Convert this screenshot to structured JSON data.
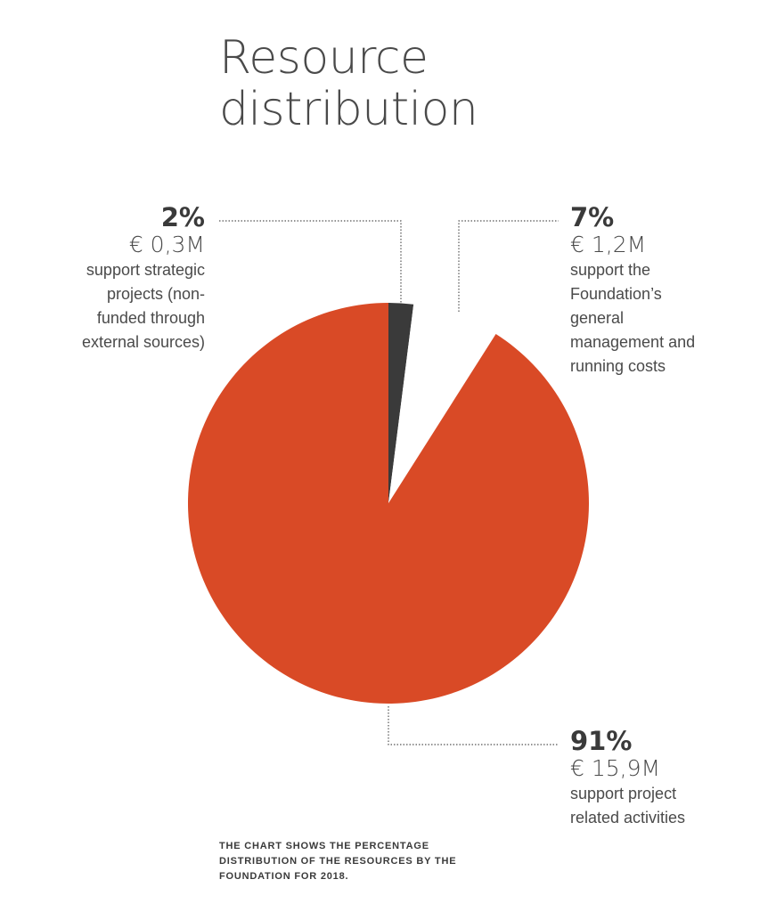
{
  "title": [
    "Resource",
    "distribution"
  ],
  "chart_data": {
    "type": "pie",
    "slices": [
      {
        "percent_label": "2%",
        "value": 2,
        "amount": "€ 0,3M",
        "description": [
          "support strategic",
          "projects (non-",
          "funded through",
          "external sources)"
        ],
        "color": "#3a3a3a"
      },
      {
        "percent_label": "7%",
        "value": 7,
        "amount": "€ 1,2M",
        "description": [
          "support the",
          "Foundation’s",
          "general",
          "management and",
          "running costs"
        ],
        "color": "#ffffff",
        "exploded": true
      },
      {
        "percent_label": "91%",
        "value": 91,
        "amount": "€ 15,9M",
        "description": [
          "support project",
          "related activities"
        ],
        "color": "#d94a26"
      }
    ]
  },
  "footnote": [
    "THE CHART SHOWS THE PERCENTAGE",
    "DISTRIBUTION OF THE RESOURCES BY THE",
    "FOUNDATION FOR 2018."
  ]
}
